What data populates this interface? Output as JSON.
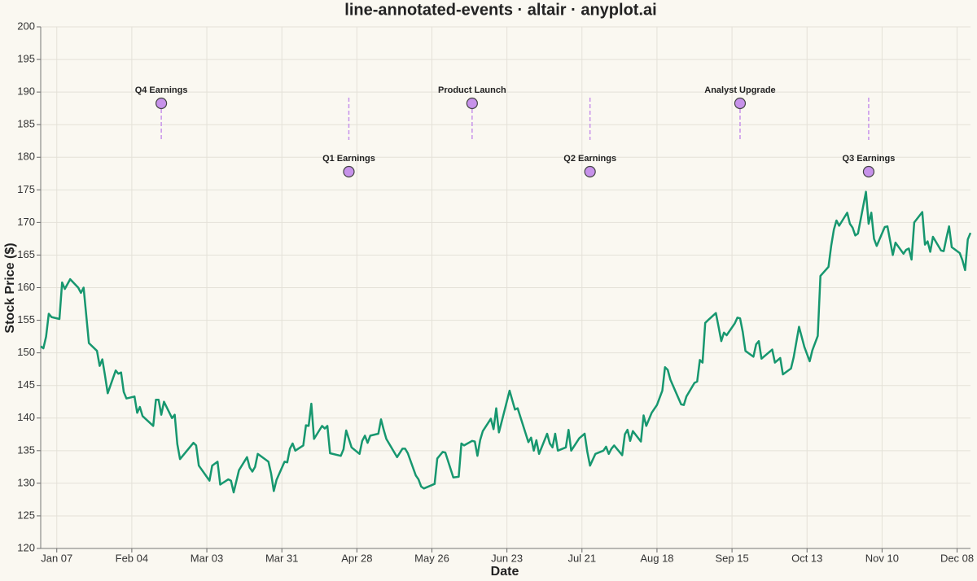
{
  "chart_data": {
    "type": "line",
    "title": "line-annotated-events · altair · anyplot.ai",
    "x_label": "Date",
    "y_label": "Stock Price ($)",
    "x": [
      "Jan 01",
      "Jan 02",
      "Jan 03",
      "Jan 04",
      "Jan 05",
      "Jan 08",
      "Jan 09",
      "Jan 10",
      "Jan 12",
      "Jan 15",
      "Jan 16",
      "Jan 17",
      "Jan 19",
      "Jan 22",
      "Jan 23",
      "Jan 24",
      "Jan 25",
      "Jan 26",
      "Jan 29",
      "Jan 30",
      "Jan 31",
      "Feb 01",
      "Feb 02",
      "Feb 05",
      "Feb 06",
      "Feb 07",
      "Feb 08",
      "Feb 12",
      "Feb 13",
      "Feb 14",
      "Feb 15",
      "Feb 16",
      "Feb 19",
      "Feb 20",
      "Feb 21",
      "Feb 22",
      "Feb 27",
      "Feb 28",
      "Feb 29",
      "Mar 04",
      "Mar 05",
      "Mar 07",
      "Mar 08",
      "Mar 11",
      "Mar 12",
      "Mar 13",
      "Mar 15",
      "Mar 18",
      "Mar 19",
      "Mar 20",
      "Mar 21",
      "Mar 22",
      "Mar 26",
      "Mar 27",
      "Mar 28",
      "Mar 29",
      "Apr 01",
      "Apr 02",
      "Apr 03",
      "Apr 04",
      "Apr 05",
      "Apr 08",
      "Apr 09",
      "Apr 10",
      "Apr 11",
      "Apr 12",
      "Apr 15",
      "Apr 16",
      "Apr 17",
      "Apr 18",
      "Apr 22",
      "Apr 23",
      "Apr 24",
      "Apr 26",
      "Apr 29",
      "Apr 30",
      "May 01",
      "May 02",
      "May 03",
      "May 06",
      "May 07",
      "May 08",
      "May 09",
      "May 13",
      "May 15",
      "May 16",
      "May 17",
      "May 20",
      "May 21",
      "May 22",
      "May 23",
      "May 27",
      "May 28",
      "May 30",
      "May 31",
      "Jun 03",
      "Jun 05",
      "Jun 06",
      "Jun 07",
      "Jun 10",
      "Jun 11",
      "Jun 12",
      "Jun 13",
      "Jun 14",
      "Jun 17",
      "Jun 18",
      "Jun 19",
      "Jun 20",
      "Jun 21",
      "Jun 24",
      "Jun 26",
      "Jun 27",
      "Jul 01",
      "Jul 02",
      "Jul 03",
      "Jul 04",
      "Jul 05",
      "Jul 08",
      "Jul 09",
      "Jul 10",
      "Jul 11",
      "Jul 12",
      "Jul 15",
      "Jul 16",
      "Jul 17",
      "Jul 20",
      "Jul 22",
      "Jul 23",
      "Jul 24",
      "Jul 26",
      "Jul 29",
      "Jul 30",
      "Jul 31",
      "Aug 01",
      "Aug 02",
      "Aug 05",
      "Aug 06",
      "Aug 07",
      "Aug 08",
      "Aug 09",
      "Aug 12",
      "Aug 13",
      "Aug 14",
      "Aug 16",
      "Aug 18",
      "Aug 20",
      "Aug 21",
      "Aug 22",
      "Aug 23",
      "Aug 25",
      "Aug 27",
      "Aug 28",
      "Aug 29",
      "Sep 01",
      "Sep 02",
      "Sep 03",
      "Sep 04",
      "Sep 05",
      "Sep 06",
      "Sep 09",
      "Sep 10",
      "Sep 11",
      "Sep 12",
      "Sep 13",
      "Sep 16",
      "Sep 17",
      "Sep 18",
      "Sep 19",
      "Sep 20",
      "Sep 23",
      "Sep 24",
      "Sep 25",
      "Sep 26",
      "Sep 30",
      "Oct 01",
      "Oct 03",
      "Oct 04",
      "Oct 07",
      "Oct 08",
      "Oct 10",
      "Oct 12",
      "Oct 14",
      "Oct 15",
      "Oct 17",
      "Oct 18",
      "Oct 21",
      "Oct 22",
      "Oct 23",
      "Oct 24",
      "Oct 25",
      "Oct 28",
      "Oct 29",
      "Oct 30",
      "Oct 31",
      "Nov 01",
      "Nov 04",
      "Nov 05",
      "Nov 06",
      "Nov 07",
      "Nov 08",
      "Nov 11",
      "Nov 12",
      "Nov 13",
      "Nov 14",
      "Nov 15",
      "Nov 18",
      "Nov 19",
      "Nov 20",
      "Nov 21",
      "Nov 22",
      "Nov 25",
      "Nov 26",
      "Nov 27",
      "Nov 28",
      "Nov 29",
      "Dec 02",
      "Dec 03",
      "Dec 04",
      "Dec 05",
      "Dec 06",
      "Dec 09",
      "Dec 10",
      "Dec 11",
      "Dec 12",
      "Dec 13"
    ],
    "values": [
      151.0,
      150.7,
      152.5,
      156.0,
      155.5,
      155.2,
      160.8,
      159.8,
      161.3,
      160.0,
      159.2,
      160.0,
      151.5,
      150.3,
      148.0,
      149.0,
      146.5,
      143.8,
      147.3,
      146.8,
      147.0,
      144.0,
      143.0,
      143.3,
      140.8,
      141.7,
      140.3,
      138.8,
      142.8,
      142.8,
      140.5,
      142.5,
      140.0,
      140.5,
      136.0,
      133.7,
      136.2,
      135.8,
      132.7,
      130.4,
      132.7,
      133.3,
      129.8,
      130.6,
      130.4,
      128.6,
      132.0,
      134.0,
      132.4,
      131.8,
      132.5,
      134.5,
      133.3,
      131.5,
      128.8,
      130.5,
      133.3,
      133.2,
      135.3,
      136.1,
      135.0,
      135.8,
      138.9,
      138.8,
      142.2,
      136.8,
      138.8,
      138.4,
      138.8,
      134.6,
      134.2,
      135.2,
      138.1,
      135.5,
      134.5,
      136.5,
      137.3,
      136.2,
      137.3,
      137.6,
      139.8,
      138.2,
      136.8,
      134.0,
      135.3,
      135.3,
      134.6,
      131.2,
      130.6,
      129.5,
      129.2,
      129.9,
      133.8,
      134.8,
      134.7,
      130.9,
      131.0,
      136.1,
      135.8,
      136.5,
      136.4,
      134.2,
      136.6,
      138.0,
      139.9,
      138.3,
      141.5,
      137.8,
      139.4,
      144.2,
      141.3,
      141.5,
      136.3,
      137.0,
      135.0,
      136.6,
      134.5,
      137.6,
      136.1,
      135.5,
      137.6,
      135.0,
      135.5,
      138.2,
      135.0,
      136.9,
      137.6,
      134.8,
      132.7,
      134.5,
      135.0,
      135.6,
      134.5,
      135.3,
      135.8,
      134.3,
      137.5,
      138.2,
      136.5,
      138.0,
      136.4,
      140.4,
      138.8,
      140.8,
      142.0,
      144.2,
      147.8,
      147.4,
      145.9,
      144.0,
      142.1,
      142.0,
      143.3,
      145.4,
      145.6,
      148.9,
      148.5,
      154.6,
      155.0,
      156.1,
      154.0,
      151.8,
      153.1,
      152.7,
      154.5,
      155.4,
      155.3,
      153.2,
      150.3,
      149.4,
      151.3,
      151.8,
      149.1,
      150.5,
      148.5,
      149.2,
      146.7,
      147.6,
      149.3,
      154.0,
      150.9,
      148.7,
      150.4,
      152.6,
      161.8,
      163.2,
      166.4,
      168.9,
      170.3,
      169.5,
      171.5,
      169.8,
      169.2,
      168.0,
      168.3,
      174.7,
      169.8,
      171.5,
      167.5,
      166.4,
      169.3,
      169.4,
      167.2,
      165.0,
      166.9,
      165.2,
      165.8,
      166.0,
      164.3,
      170.0,
      171.6,
      166.6,
      167.1,
      165.5,
      167.8,
      165.7,
      165.6,
      167.6,
      169.4,
      166.2,
      165.3,
      164.2,
      162.7,
      167.4,
      168.4
    ],
    "color": "#17976f",
    "events": [
      {
        "date": "Feb 15",
        "label": "Q4 Earnings"
      },
      {
        "date": "Apr 25",
        "label": "Q1 Earnings"
      },
      {
        "date": "Jun 10",
        "label": "Product Launch"
      },
      {
        "date": "Jul 24",
        "label": "Q2 Earnings"
      },
      {
        "date": "Sep 18",
        "label": "Analyst Upgrade"
      },
      {
        "date": "Nov 05",
        "label": "Q3 Earnings"
      }
    ],
    "event_color": "#c792ea",
    "xlim": [
      "Jan 01",
      "Dec 13"
    ],
    "xticks": [
      "Jan 07",
      "Feb 04",
      "Mar 03",
      "Mar 31",
      "Apr 28",
      "May 26",
      "Jun 23",
      "Jul 21",
      "Aug 18",
      "Sep 15",
      "Oct 13",
      "Nov 10",
      "Dec 08"
    ],
    "ylim": [
      120,
      200
    ],
    "yticks": [
      120,
      125,
      130,
      135,
      140,
      145,
      150,
      155,
      160,
      165,
      170,
      175,
      180,
      185,
      190,
      195,
      200
    ],
    "grid": true
  }
}
